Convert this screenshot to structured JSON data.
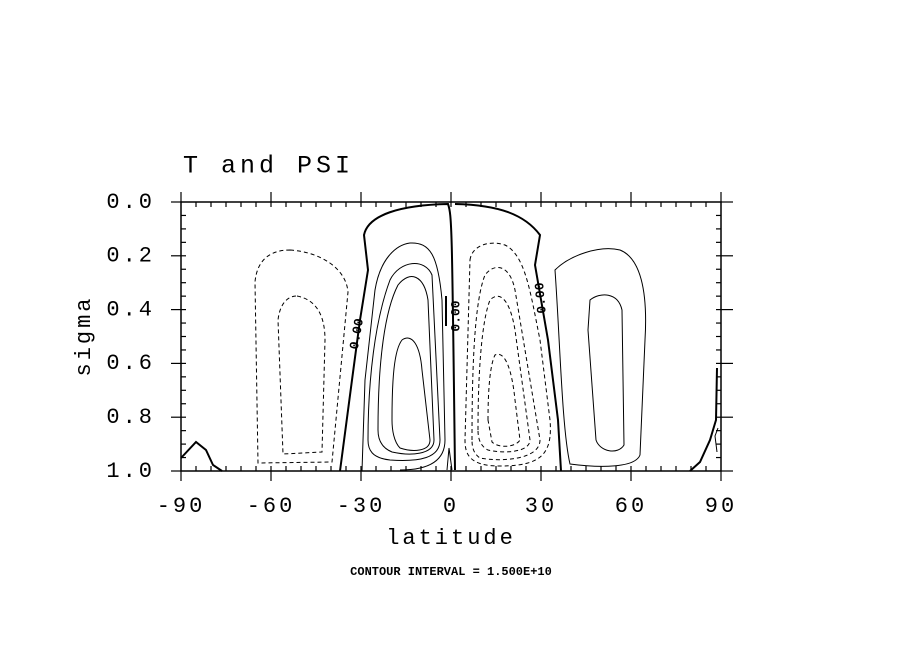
{
  "chart_data": {
    "type": "contour",
    "title": "T and PSI",
    "x_label": "latitude",
    "y_label": "sigma",
    "xlim": [
      -90,
      90
    ],
    "xticks": [
      -90,
      -60,
      -30,
      0,
      30,
      60,
      90
    ],
    "ylim": [
      1,
      0
    ],
    "yticks": [
      {
        "value": 0,
        "label": "0.0"
      },
      {
        "value": 0.2,
        "label": "0.2"
      },
      {
        "value": 0.4,
        "label": "0.4"
      },
      {
        "value": 0.6,
        "label": "0.6"
      },
      {
        "value": 0.8,
        "label": "0.8"
      },
      {
        "value": 1,
        "label": "1.0"
      }
    ],
    "contour_labels": [
      "0.00",
      "0.00",
      "0.00"
    ],
    "footnote": "CONTOUR INTERVAL = 1.500E+10"
  }
}
